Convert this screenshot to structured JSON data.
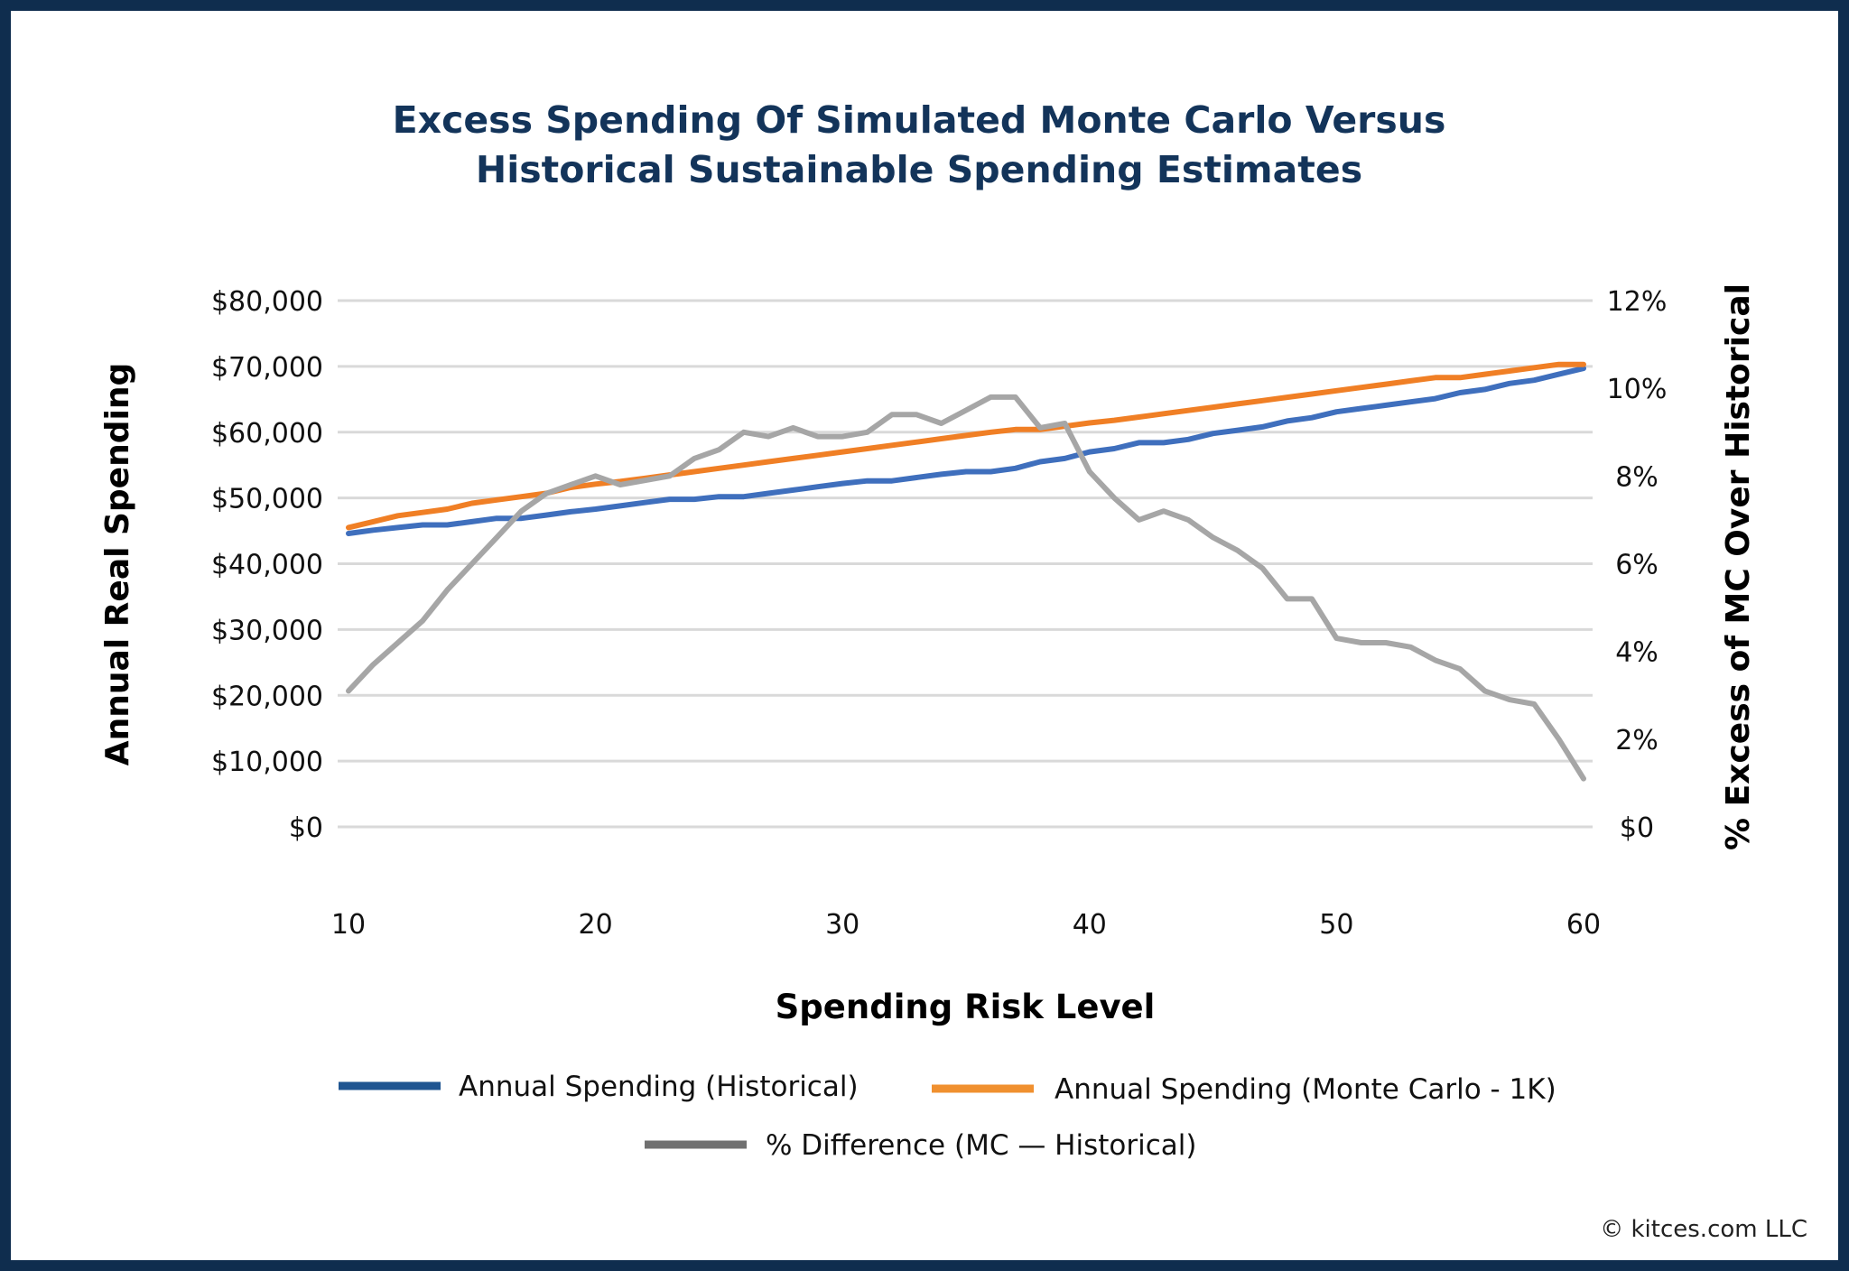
{
  "chart_data": {
    "type": "line",
    "title_lines": [
      "Excess Spending Of Simulated Monte Carlo Versus",
      "Historical Sustainable Spending Estimates"
    ],
    "xlabel": "Spending Risk Level",
    "ylabel": "Annual Real Spending",
    "y2label": "% Excess of MC Over Historical",
    "xlim": [
      10,
      60
    ],
    "xticks": [
      10,
      20,
      30,
      40,
      50,
      60
    ],
    "ylim": [
      0,
      80000
    ],
    "yticks": [
      "$0",
      "$10,000",
      "$20,000",
      "$30,000",
      "$40,000",
      "$50,000",
      "$60,000",
      "$70,000",
      "$80,000"
    ],
    "y2lim": [
      0,
      12
    ],
    "y2ticks": [
      "$0",
      "2%",
      "4%",
      "6%",
      "8%",
      "10%",
      "12%"
    ],
    "grid": true,
    "legend_placement": "bottom",
    "x": [
      10,
      11,
      12,
      13,
      14,
      15,
      16,
      17,
      18,
      19,
      20,
      21,
      22,
      23,
      24,
      25,
      26,
      27,
      28,
      29,
      30,
      31,
      32,
      33,
      34,
      35,
      36,
      37,
      38,
      39,
      40,
      41,
      42,
      43,
      44,
      45,
      46,
      47,
      48,
      49,
      50,
      51,
      52,
      53,
      54,
      55,
      56,
      57,
      58,
      59,
      60
    ],
    "series": [
      {
        "name": "Annual Spending (Historical)",
        "axis": "left",
        "color": "#3f6fbd",
        "legend_color": "#1f5591",
        "values": [
          44600,
          45100,
          45500,
          45900,
          45900,
          46400,
          46900,
          46900,
          47400,
          47900,
          48300,
          48800,
          49300,
          49800,
          49800,
          50200,
          50200,
          50700,
          51200,
          51700,
          52200,
          52600,
          52600,
          53100,
          53600,
          54000,
          54000,
          54500,
          55500,
          56000,
          57000,
          57500,
          58400,
          58400,
          58900,
          59800,
          60300,
          60800,
          61700,
          62200,
          63100,
          63600,
          64100,
          64600,
          65100,
          66000,
          66500,
          67400,
          67900,
          68800,
          69700
        ]
      },
      {
        "name": "Annual Spending (Monte Carlo - 1K)",
        "axis": "left",
        "color": "#f07f25",
        "legend_color": "#f0902f",
        "values": [
          45500,
          46400,
          47300,
          47800,
          48300,
          49200,
          49700,
          50200,
          50700,
          51600,
          52100,
          52500,
          53000,
          53500,
          54000,
          54500,
          55000,
          55500,
          56000,
          56500,
          57000,
          57500,
          58000,
          58500,
          59000,
          59500,
          60000,
          60400,
          60400,
          60900,
          61400,
          61800,
          62300,
          62800,
          63300,
          63800,
          64300,
          64800,
          65300,
          65800,
          66300,
          66800,
          67300,
          67800,
          68300,
          68300,
          68800,
          69300,
          69800,
          70300,
          70300
        ]
      },
      {
        "name": "% Difference (MC — Historical)",
        "axis": "right",
        "color": "#a6a6a6",
        "legend_color": "#707070",
        "values": [
          3.1,
          3.7,
          4.2,
          4.7,
          5.4,
          6.0,
          6.6,
          7.2,
          7.6,
          7.8,
          8.0,
          7.8,
          7.9,
          8.0,
          8.4,
          8.6,
          9.0,
          8.9,
          9.1,
          8.9,
          8.9,
          9.0,
          9.4,
          9.4,
          9.2,
          9.5,
          9.8,
          9.8,
          9.1,
          9.2,
          8.1,
          7.5,
          7.0,
          7.2,
          7.0,
          6.6,
          6.3,
          5.9,
          5.2,
          5.2,
          4.3,
          4.2,
          4.2,
          4.1,
          3.8,
          3.6,
          3.1,
          2.9,
          2.8,
          2.0,
          1.1
        ]
      }
    ]
  },
  "colors": {
    "border": "#0f2d4e",
    "title": "#13345a",
    "grid": "#d9d9d9"
  },
  "copyright": "© kitces.com LLC"
}
